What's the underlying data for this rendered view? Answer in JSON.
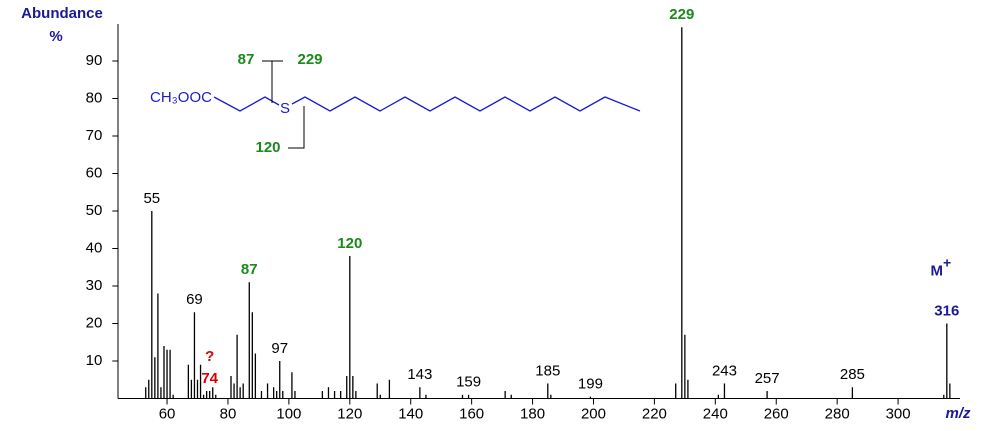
{
  "chart_data": {
    "type": "stick",
    "y_label": "Abundance",
    "y_unit": "%",
    "x_label": "m/z",
    "color": "#000000",
    "xlim": [
      44,
      320
    ],
    "ylim": [
      0,
      100
    ],
    "xticks": [
      60,
      80,
      100,
      120,
      140,
      160,
      180,
      200,
      220,
      240,
      260,
      280,
      300
    ],
    "yticks": [
      10,
      20,
      30,
      40,
      50,
      60,
      70,
      80,
      90
    ],
    "x": [
      53,
      54,
      55,
      56,
      57,
      58,
      59,
      60,
      61,
      62,
      67,
      68,
      69,
      70,
      71,
      72,
      73,
      74,
      75,
      76,
      81,
      82,
      83,
      84,
      85,
      87,
      88,
      89,
      91,
      93,
      95,
      96,
      97,
      98,
      101,
      102,
      111,
      113,
      115,
      117,
      119,
      120,
      121,
      122,
      129,
      130,
      133,
      143,
      145,
      157,
      159,
      171,
      173,
      185,
      186,
      199,
      227,
      229,
      230,
      231,
      241,
      243,
      257,
      285,
      315,
      316,
      317
    ],
    "values": [
      3,
      5,
      50,
      11,
      28,
      3,
      14,
      13,
      13,
      1,
      9,
      5,
      23,
      5,
      9,
      1,
      2,
      2,
      3,
      1,
      6,
      4,
      17,
      3,
      4,
      31,
      23,
      12,
      2,
      4,
      3,
      2,
      10,
      2,
      7,
      2,
      2,
      3,
      2,
      2,
      6,
      38,
      6,
      2,
      4,
      1,
      5,
      3,
      1,
      1,
      1,
      2,
      1,
      4,
      1,
      0.5,
      4,
      99,
      17,
      5,
      1,
      4,
      2,
      3,
      1,
      20,
      4
    ],
    "peak_labels": [
      {
        "mz": 55,
        "color": "#000000",
        "bold": false
      },
      {
        "mz": 69,
        "color": "#000000",
        "bold": false
      },
      {
        "mz": 74,
        "color": "#dd0000",
        "bold": true
      },
      {
        "mz": 87,
        "color": "#1a8a1a",
        "bold": true
      },
      {
        "mz": 97,
        "color": "#000000",
        "bold": false
      },
      {
        "mz": 120,
        "color": "#1a8a1a",
        "bold": true
      },
      {
        "mz": 143,
        "color": "#000000",
        "bold": false
      },
      {
        "mz": 159,
        "color": "#000000",
        "bold": false
      },
      {
        "mz": 185,
        "color": "#000000",
        "bold": false
      },
      {
        "mz": 199,
        "color": "#000000",
        "bold": false
      },
      {
        "mz": 229,
        "color": "#1a8a1a",
        "bold": true
      },
      {
        "mz": 243,
        "color": "#000000",
        "bold": false
      },
      {
        "mz": 257,
        "color": "#000000",
        "bold": false
      },
      {
        "mz": 285,
        "color": "#000000",
        "bold": false
      },
      {
        "mz": 316,
        "color": "#1a1a99",
        "bold": true
      }
    ],
    "question_mark": "?",
    "molecular_ion_label": {
      "text": "M",
      "sup": "+"
    },
    "structure": {
      "ester": "CH₃OOC",
      "sulfur": "S",
      "fragments": [
        87,
        229,
        120
      ]
    }
  }
}
